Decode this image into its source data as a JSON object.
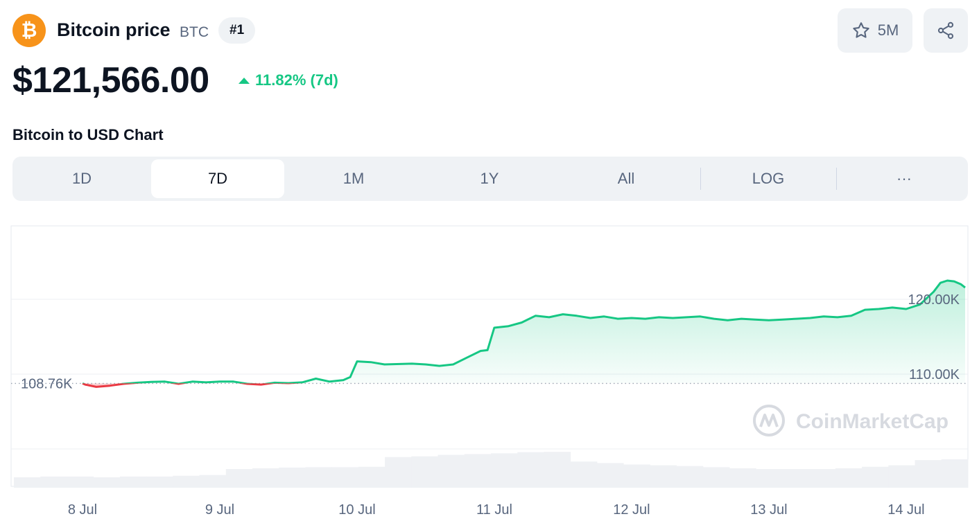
{
  "header": {
    "coin_name": "Bitcoin price",
    "symbol": "BTC",
    "rank": "#1",
    "watchlist_count": "5M",
    "price": "$121,566.00",
    "change": "11.82% (7d)",
    "logo_glyph": "₿",
    "accent_color": "#f7931a",
    "up_color": "#16c784",
    "down_color": "#ea3943"
  },
  "chart_title": "Bitcoin to USD Chart",
  "range_tabs": [
    {
      "label": "1D",
      "active": false
    },
    {
      "label": "7D",
      "active": true
    },
    {
      "label": "1M",
      "active": false
    },
    {
      "label": "1Y",
      "active": false
    },
    {
      "label": "All",
      "active": false
    },
    {
      "label": "LOG",
      "active": false
    },
    {
      "label": "···",
      "active": false
    }
  ],
  "watermark": "CoinMarketCap",
  "chart_data": {
    "type": "area",
    "x_ticks": [
      "8 Jul",
      "9 Jul",
      "10 Jul",
      "11 Jul",
      "12 Jul",
      "13 Jul",
      "14 Jul"
    ],
    "y_ticks": [
      "120.00K",
      "110.00K"
    ],
    "y_tick_values": [
      120000,
      110000
    ],
    "ylim": [
      100000,
      130000
    ],
    "baseline_value": 108760,
    "baseline_label": "108.76K",
    "series": [
      {
        "values": [
          {
            "x": 8.0,
            "y": 108760
          },
          {
            "x": 8.02,
            "y": 108600
          },
          {
            "x": 8.1,
            "y": 108300
          },
          {
            "x": 8.2,
            "y": 108450
          },
          {
            "x": 8.3,
            "y": 108700
          },
          {
            "x": 8.4,
            "y": 108850
          },
          {
            "x": 8.5,
            "y": 108950
          },
          {
            "x": 8.6,
            "y": 109000
          },
          {
            "x": 8.7,
            "y": 108700
          },
          {
            "x": 8.8,
            "y": 109000
          },
          {
            "x": 8.9,
            "y": 108900
          },
          {
            "x": 9.0,
            "y": 109000
          },
          {
            "x": 9.1,
            "y": 109000
          },
          {
            "x": 9.2,
            "y": 108700
          },
          {
            "x": 9.3,
            "y": 108600
          },
          {
            "x": 9.4,
            "y": 108850
          },
          {
            "x": 9.5,
            "y": 108800
          },
          {
            "x": 9.6,
            "y": 108900
          },
          {
            "x": 9.7,
            "y": 109400
          },
          {
            "x": 9.8,
            "y": 109000
          },
          {
            "x": 9.9,
            "y": 109200
          },
          {
            "x": 9.95,
            "y": 109600
          },
          {
            "x": 10.0,
            "y": 111700
          },
          {
            "x": 10.1,
            "y": 111600
          },
          {
            "x": 10.2,
            "y": 111300
          },
          {
            "x": 10.4,
            "y": 111400
          },
          {
            "x": 10.5,
            "y": 111300
          },
          {
            "x": 10.6,
            "y": 111100
          },
          {
            "x": 10.7,
            "y": 111300
          },
          {
            "x": 10.8,
            "y": 112200
          },
          {
            "x": 10.9,
            "y": 113100
          },
          {
            "x": 10.95,
            "y": 113200
          },
          {
            "x": 11.0,
            "y": 116200
          },
          {
            "x": 11.1,
            "y": 116400
          },
          {
            "x": 11.2,
            "y": 116900
          },
          {
            "x": 11.3,
            "y": 117800
          },
          {
            "x": 11.4,
            "y": 117600
          },
          {
            "x": 11.5,
            "y": 118000
          },
          {
            "x": 11.6,
            "y": 117800
          },
          {
            "x": 11.7,
            "y": 117500
          },
          {
            "x": 11.8,
            "y": 117700
          },
          {
            "x": 11.9,
            "y": 117400
          },
          {
            "x": 12.0,
            "y": 117500
          },
          {
            "x": 12.1,
            "y": 117400
          },
          {
            "x": 12.2,
            "y": 117600
          },
          {
            "x": 12.3,
            "y": 117500
          },
          {
            "x": 12.4,
            "y": 117600
          },
          {
            "x": 12.5,
            "y": 117700
          },
          {
            "x": 12.6,
            "y": 117400
          },
          {
            "x": 12.7,
            "y": 117200
          },
          {
            "x": 12.8,
            "y": 117400
          },
          {
            "x": 12.9,
            "y": 117300
          },
          {
            "x": 13.0,
            "y": 117200
          },
          {
            "x": 13.1,
            "y": 117300
          },
          {
            "x": 13.2,
            "y": 117400
          },
          {
            "x": 13.3,
            "y": 117500
          },
          {
            "x": 13.4,
            "y": 117700
          },
          {
            "x": 13.5,
            "y": 117600
          },
          {
            "x": 13.6,
            "y": 117800
          },
          {
            "x": 13.7,
            "y": 118600
          },
          {
            "x": 13.8,
            "y": 118700
          },
          {
            "x": 13.9,
            "y": 118900
          },
          {
            "x": 14.0,
            "y": 118700
          },
          {
            "x": 14.1,
            "y": 119300
          },
          {
            "x": 14.2,
            "y": 121000
          },
          {
            "x": 14.25,
            "y": 122200
          },
          {
            "x": 14.3,
            "y": 122500
          },
          {
            "x": 14.35,
            "y": 122400
          },
          {
            "x": 14.4,
            "y": 122000
          },
          {
            "x": 14.43,
            "y": 121566
          }
        ]
      }
    ],
    "volume_relative": [
      0.28,
      0.3,
      0.3,
      0.28,
      0.3,
      0.3,
      0.32,
      0.34,
      0.5,
      0.52,
      0.54,
      0.55,
      0.55,
      0.56,
      0.82,
      0.84,
      0.88,
      0.9,
      0.92,
      0.95,
      0.96,
      0.7,
      0.66,
      0.62,
      0.6,
      0.58,
      0.55,
      0.52,
      0.5,
      0.5,
      0.5,
      0.52,
      0.56,
      0.6,
      0.74,
      0.76
    ],
    "grid": true
  }
}
